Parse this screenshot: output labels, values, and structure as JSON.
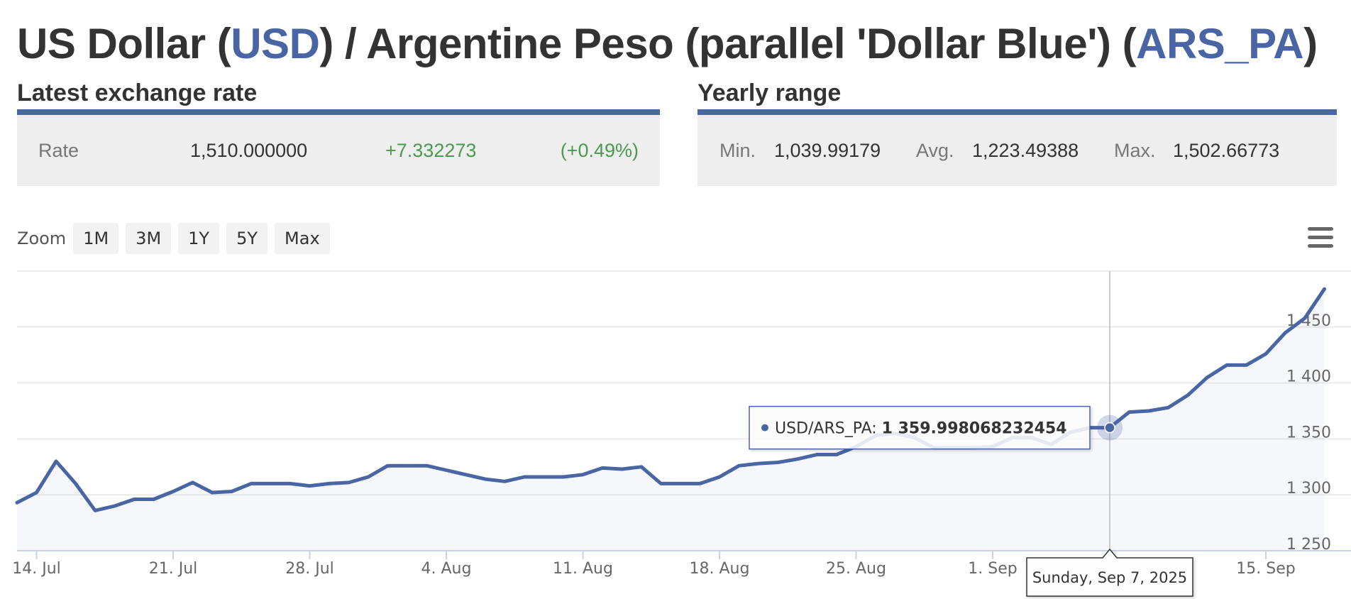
{
  "title": {
    "base_name": "US Dollar",
    "base_code": "USD",
    "quote_name": "Argentine Peso (parallel 'Dollar Blue')",
    "quote_code": "ARS_PA"
  },
  "latest": {
    "heading": "Latest exchange rate",
    "rate_label": "Rate",
    "rate_value": "1,510.000000",
    "change": "+7.332273",
    "change_pct": "(+0.49%)"
  },
  "range": {
    "heading": "Yearly range",
    "min_label": "Min.",
    "min_value": "1,039.99179",
    "avg_label": "Avg.",
    "avg_value": "1,223.49388",
    "max_label": "Max.",
    "max_value": "1,502.66773"
  },
  "zoom": {
    "label": "Zoom",
    "buttons": [
      "1M",
      "3M",
      "1Y",
      "5Y",
      "Max"
    ]
  },
  "colors": {
    "accent": "#4a65a4",
    "positive": "#4a9a50",
    "panel_bg": "#eeeeee"
  },
  "icons": {
    "menu": "hamburger-menu-icon"
  },
  "chart_data": {
    "type": "area",
    "series": [
      {
        "name": "USD/ARS_PA",
        "x": [
          "2025-07-13",
          "2025-07-14",
          "2025-07-15",
          "2025-07-16",
          "2025-07-17",
          "2025-07-18",
          "2025-07-19",
          "2025-07-20",
          "2025-07-21",
          "2025-07-22",
          "2025-07-23",
          "2025-07-24",
          "2025-07-25",
          "2025-07-26",
          "2025-07-27",
          "2025-07-28",
          "2025-07-29",
          "2025-07-30",
          "2025-07-31",
          "2025-08-01",
          "2025-08-02",
          "2025-08-03",
          "2025-08-04",
          "2025-08-05",
          "2025-08-06",
          "2025-08-07",
          "2025-08-08",
          "2025-08-09",
          "2025-08-10",
          "2025-08-11",
          "2025-08-12",
          "2025-08-13",
          "2025-08-14",
          "2025-08-15",
          "2025-08-16",
          "2025-08-17",
          "2025-08-18",
          "2025-08-19",
          "2025-08-20",
          "2025-08-21",
          "2025-08-22",
          "2025-08-23",
          "2025-08-24",
          "2025-08-25",
          "2025-08-26",
          "2025-08-27",
          "2025-08-28",
          "2025-08-29",
          "2025-08-30",
          "2025-08-31",
          "2025-09-01",
          "2025-09-02",
          "2025-09-03",
          "2025-09-04",
          "2025-09-05",
          "2025-09-06",
          "2025-09-07",
          "2025-09-08",
          "2025-09-09",
          "2025-09-10",
          "2025-09-11",
          "2025-09-12",
          "2025-09-13",
          "2025-09-14",
          "2025-09-15",
          "2025-09-16",
          "2025-09-17",
          "2025-09-18"
        ],
        "values": [
          1293,
          1302,
          1330,
          1310,
          1286,
          1290,
          1296,
          1296,
          1303,
          1311,
          1302,
          1303,
          1310,
          1310,
          1310,
          1308,
          1310,
          1311,
          1316,
          1326,
          1326,
          1326,
          1322,
          1318,
          1314,
          1312,
          1316,
          1316,
          1316,
          1318,
          1324,
          1323,
          1325,
          1310,
          1310,
          1310,
          1316,
          1326,
          1328,
          1329,
          1332,
          1336,
          1336,
          1343,
          1353,
          1355,
          1351,
          1342,
          1342,
          1342,
          1343,
          1351,
          1351,
          1345,
          1356,
          1360,
          1359.998068232454,
          1374,
          1375,
          1378,
          1389,
          1405,
          1416,
          1416,
          1426,
          1445,
          1458,
          1484
        ]
      }
    ],
    "x_ticks": [
      "14. Jul",
      "21. Jul",
      "28. Jul",
      "4. Aug",
      "11. Aug",
      "18. Aug",
      "25. Aug",
      "1. Sep",
      "15. Sep"
    ],
    "y_ticks": [
      "1 250",
      "1 300",
      "1 350",
      "1 400",
      "1 450"
    ],
    "ylim": [
      1250,
      1500
    ],
    "grid": true,
    "tooltip": {
      "series": "USD/ARS_PA",
      "value": "1 359.998068232454",
      "date": "Sunday, Sep 7, 2025",
      "index": 56
    }
  }
}
